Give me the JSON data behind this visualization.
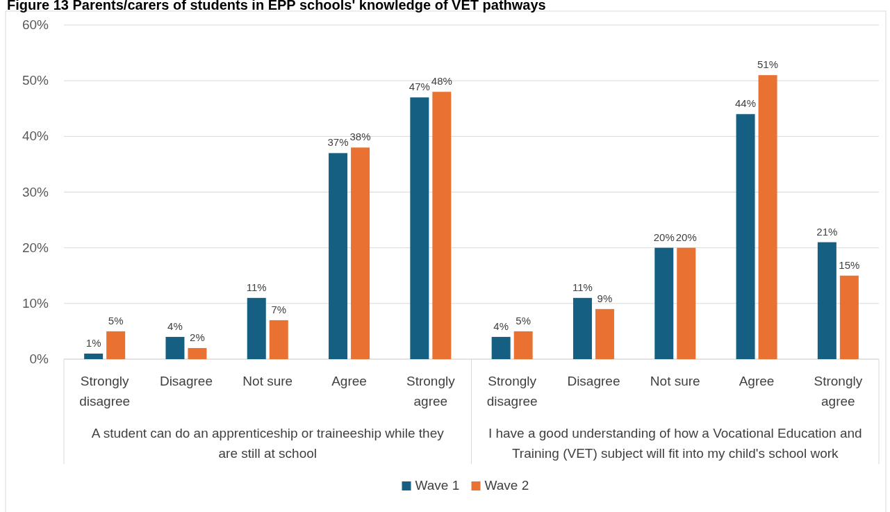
{
  "chart_data": {
    "type": "bar",
    "title": "Figure 13 Parents/carers of students in EPP schools' knowledge of VET pathways",
    "categories": [
      "Strongly disagree",
      "Disagree",
      "Not sure",
      "Agree",
      "Strongly agree",
      "Strongly disagree",
      "Disagree",
      "Not sure",
      "Agree",
      "Strongly agree"
    ],
    "series": [
      {
        "name": "Wave 1",
        "color": "#156082",
        "values": [
          1,
          4,
          11,
          37,
          47,
          4,
          11,
          20,
          44,
          21
        ],
        "value_labels": [
          "1%",
          "4%",
          "11%",
          "37%",
          "47%",
          "4%",
          "11%",
          "20%",
          "44%",
          "21%"
        ]
      },
      {
        "name": "Wave 2",
        "color": "#e97132",
        "values": [
          5,
          2,
          7,
          38,
          48,
          5,
          9,
          20,
          51,
          15
        ],
        "value_labels": [
          "5%",
          "2%",
          "7%",
          "38%",
          "48%",
          "5%",
          "9%",
          "20%",
          "51%",
          "15%"
        ]
      }
    ],
    "ylim": [
      0,
      60
    ],
    "yticks": [
      {
        "value": 0,
        "label": "0%"
      },
      {
        "value": 10,
        "label": "10%"
      },
      {
        "value": 20,
        "label": "20%"
      },
      {
        "value": 30,
        "label": "30%"
      },
      {
        "value": 40,
        "label": "40%"
      },
      {
        "value": 50,
        "label": "50%"
      },
      {
        "value": 60,
        "label": "60%"
      }
    ],
    "grid": "y",
    "legend": "bottom",
    "annotations": [
      "A student can do an apprenticeship or traineeship while they are still at school",
      "I have a good understanding of how a Vocational Education and Training (VET) subject will fit into my child's school work"
    ]
  }
}
